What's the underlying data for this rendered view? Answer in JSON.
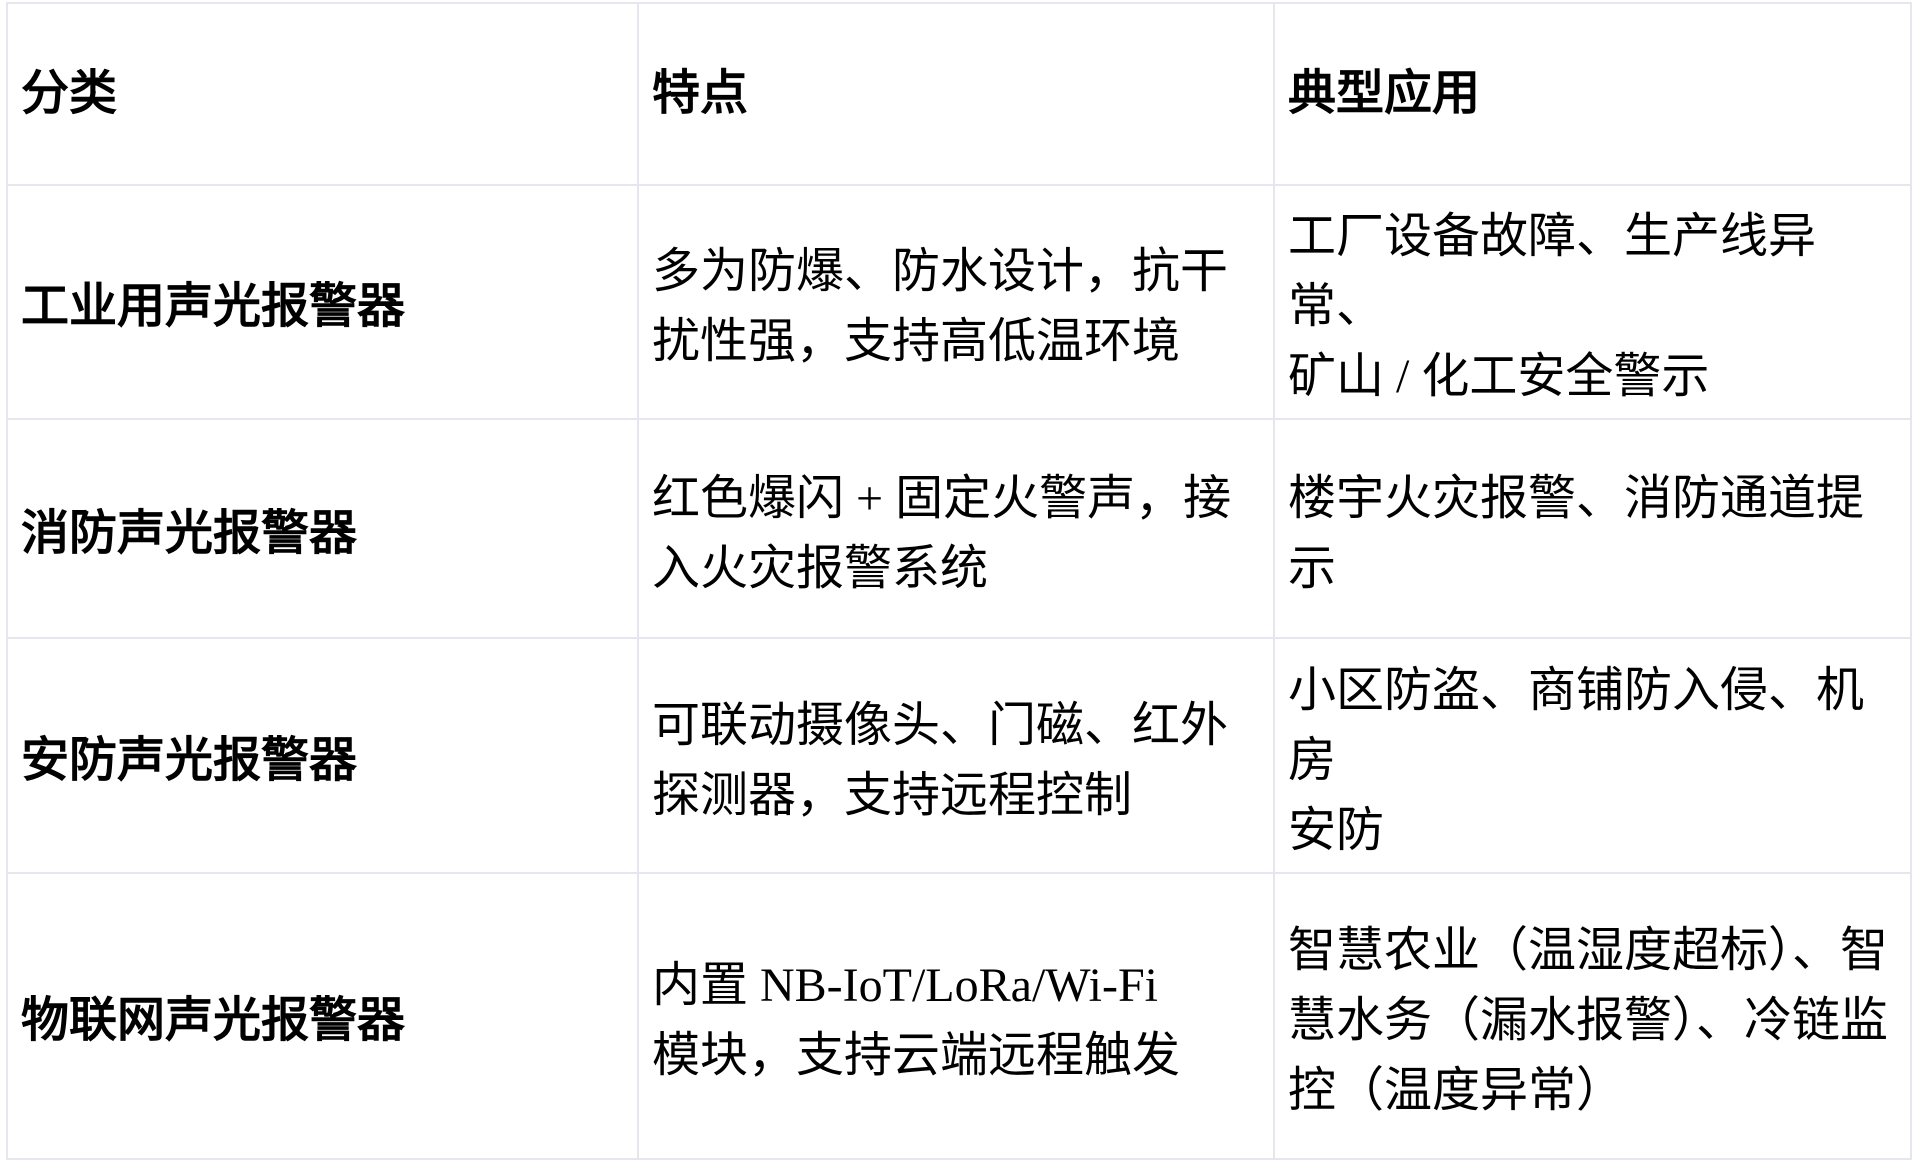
{
  "colors": {
    "background": "#ffffff",
    "grid_border": "#e6e6ee",
    "text": "#000000"
  },
  "table": {
    "columns": [
      {
        "label": "分类"
      },
      {
        "label": "特点"
      },
      {
        "label": "典型应用"
      }
    ],
    "rows": [
      {
        "category": "工业用声光报警器",
        "features": "多为防爆、防水设计，抗干\n扰性强，支持高低温环境",
        "applications": "工厂设备故障、生产线异常、\n矿山 / 化工安全警示"
      },
      {
        "category": "消防声光报警器",
        "features": "红色爆闪 + 固定火警声，接\n入火灾报警系统",
        "applications": "楼宇火灾报警、消防通道提示"
      },
      {
        "category": "安防声光报警器",
        "features": "可联动摄像头、门磁、红外\n探测器，支持远程控制",
        "applications": "小区防盗、商铺防入侵、机房\n安防"
      },
      {
        "category": "物联网声光报警器",
        "features": "内置 NB-IoT/LoRa/Wi-Fi\n模块，支持云端远程触发",
        "applications": "智慧农业（温湿度超标）、智\n慧水务（漏水报警）、冷链监\n控（温度异常）"
      }
    ]
  }
}
